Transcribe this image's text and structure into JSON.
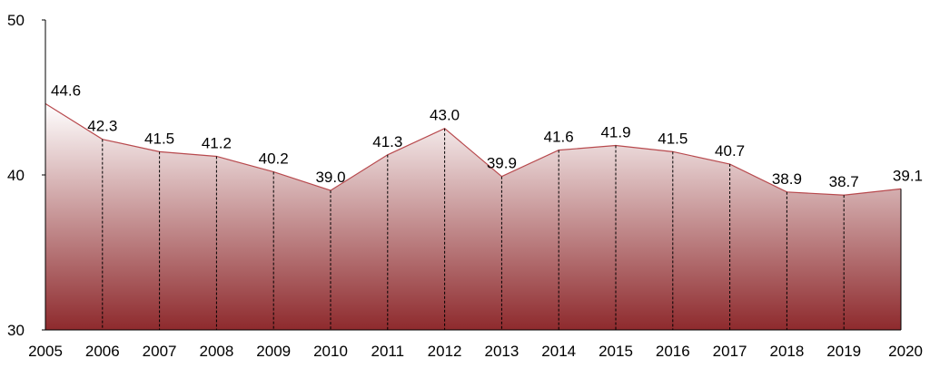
{
  "chart_data": {
    "type": "area",
    "x": [
      "2005",
      "2006",
      "2007",
      "2008",
      "2009",
      "2010",
      "2011",
      "2012",
      "2013",
      "2014",
      "2015",
      "2016",
      "2017",
      "2018",
      "2019",
      "2020"
    ],
    "values": [
      44.6,
      42.3,
      41.5,
      41.2,
      40.2,
      39.0,
      41.3,
      43.0,
      39.9,
      41.6,
      41.9,
      41.5,
      40.7,
      38.9,
      38.7,
      39.1
    ],
    "value_labels": [
      "44.6",
      "42.3",
      "41.5",
      "41.2",
      "40.2",
      "39.0",
      "41.3",
      "43.0",
      "39.9",
      "41.6",
      "41.9",
      "41.5",
      "40.7",
      "38.9",
      "38.7",
      "39.1"
    ],
    "ylim": [
      30,
      50
    ],
    "y_ticks": [
      "30",
      "40",
      "50"
    ],
    "grid": false,
    "drop_lines": "dashed",
    "colors": {
      "fill_top": "#ffffff",
      "fill_bottom": "#8e2a2d",
      "line": "#b84a4e",
      "axis": "#000000",
      "drop_line": "#000000"
    }
  }
}
